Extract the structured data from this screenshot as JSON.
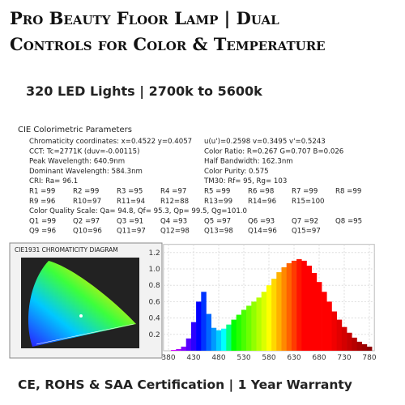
{
  "header": {
    "title_lines": [
      "Pro Beauty Floor Lamp | Dual",
      "Controls for Color & Temperature"
    ],
    "subtitle": "320 LED Lights  | 2700k to 5600k"
  },
  "report": {
    "heading": "CIE Colorimetric Parameters",
    "rows": [
      [
        "Chromaticity coordinates: x=0.4522 y=0.4057",
        "u(u')=0.2598 v=0.3495 v'=0.5243"
      ],
      [
        "CCT: Tc=2771K (duv=-0.00115)",
        "Color Ratio: R=0.267 G=0.707 B=0.026"
      ],
      [
        "Peak Wavelength: 640.9nm",
        "Half Bandwidth: 162.3nm"
      ],
      [
        "Dominant Wavelength: 584.3nm",
        "Color Purity: 0.575"
      ],
      [
        "CRI: Ra= 96.1",
        "TM30: Rf= 95, Rg= 103"
      ],
      [
        "R1 =99",
        "R2 =99",
        "R3 =95",
        "R4 =97",
        "R5 =99",
        "R6 =98",
        "R7 =99",
        "R8 =99"
      ],
      [
        "R9 =96",
        "R10=97",
        "R11=94",
        "R12=88",
        "R13=99",
        "R14=96",
        "R15=100"
      ],
      [
        "Color Quality Scale: Qa= 94.8, Qf= 95.3, Qp= 99.5, Qg=101.0"
      ],
      [
        "Q1 =99",
        "Q2 =97",
        "Q3 =91",
        "Q4 =93",
        "Q5 =97",
        "Q6 =93",
        "Q7 =92",
        "Q8 =95"
      ],
      [
        "Q9 =96",
        "Q10=96",
        "Q11=97",
        "Q12=98",
        "Q13=98",
        "Q14=96",
        "Q15=97"
      ]
    ]
  },
  "cie_diagram": {
    "title": "CIE1931 CHROMATICITY DIAGRAM"
  },
  "chart_data": {
    "type": "spectrum",
    "x": [
      380,
      390,
      400,
      410,
      420,
      430,
      440,
      450,
      460,
      470,
      480,
      490,
      500,
      510,
      520,
      530,
      540,
      550,
      560,
      570,
      580,
      590,
      600,
      610,
      620,
      630,
      640,
      650,
      660,
      670,
      680,
      690,
      700,
      710,
      720,
      730,
      740,
      750,
      760,
      770,
      780
    ],
    "values": [
      0,
      0.01,
      0.02,
      0.05,
      0.15,
      0.35,
      0.6,
      0.72,
      0.45,
      0.28,
      0.25,
      0.27,
      0.32,
      0.38,
      0.44,
      0.5,
      0.55,
      0.6,
      0.65,
      0.72,
      0.8,
      0.88,
      0.96,
      1.02,
      1.07,
      1.1,
      1.12,
      1.1,
      1.04,
      0.95,
      0.84,
      0.72,
      0.6,
      0.48,
      0.38,
      0.29,
      0.22,
      0.16,
      0.11,
      0.08,
      0.05
    ],
    "xlim": [
      370,
      790
    ],
    "ylim": [
      0,
      1.3
    ],
    "xticks": [
      380,
      430,
      480,
      530,
      580,
      630,
      680,
      730,
      780
    ],
    "yticks": [
      0.2,
      0.4,
      0.6,
      0.8,
      {
        "value": 1,
        "label": "1.0"
      },
      1.2
    ],
    "grid": true
  },
  "footer": "CE, ROHS & SAA  Certification | 1 Year Warranty"
}
